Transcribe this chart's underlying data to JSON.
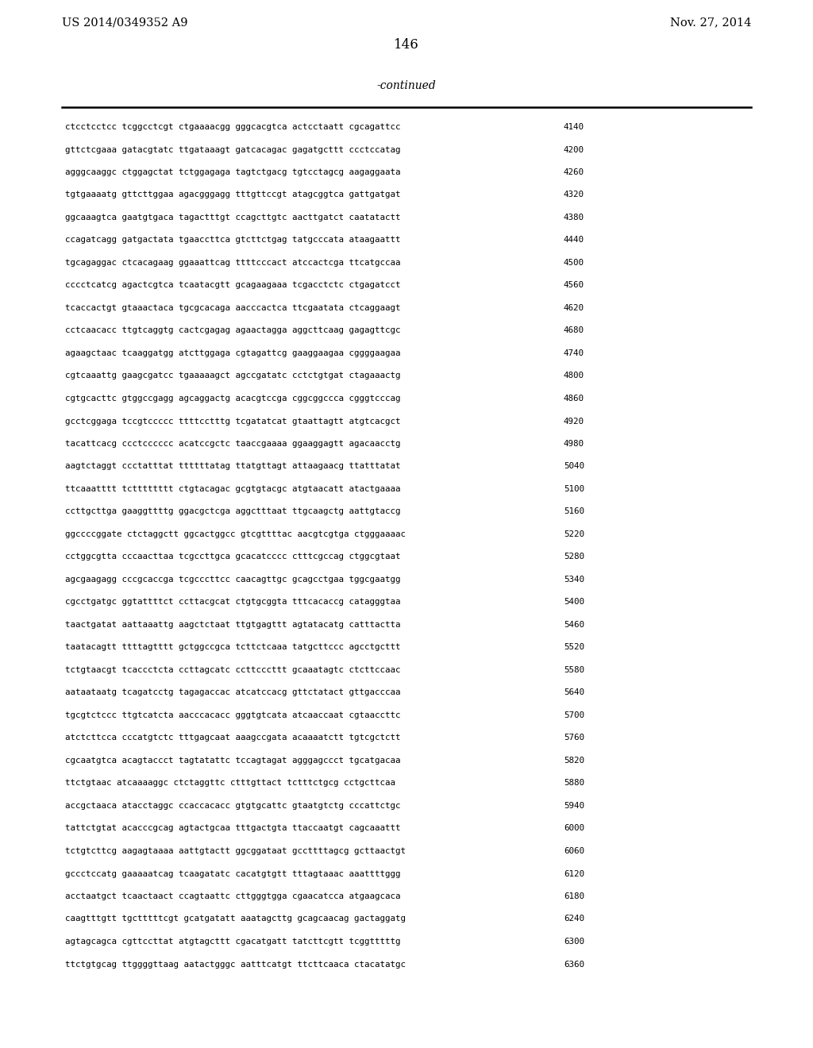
{
  "left_header": "US 2014/0349352 A9",
  "right_header": "Nov. 27, 2014",
  "page_number": "146",
  "continued_label": "-continued",
  "background_color": "#ffffff",
  "text_color": "#000000",
  "lines": [
    [
      "ctcctcctcc tcggcctcgt ctgaaaacgg gggcacgtca actcctaatt cgcagattcc",
      "4140"
    ],
    [
      "gttctcgaaa gatacgtatc ttgataaagt gatcacagac gagatgcttt ccctccatag",
      "4200"
    ],
    [
      "agggcaaggc ctggagctat tctggagaga tagtctgacg tgtcctagcg aagaggaata",
      "4260"
    ],
    [
      "tgtgaaaatg gttcttggaa agacgggagg tttgttccgt atagcggtca gattgatgat",
      "4320"
    ],
    [
      "ggcaaagtca gaatgtgaca tagactttgt ccagcttgtc aacttgatct caatatactt",
      "4380"
    ],
    [
      "ccagatcagg gatgactata tgaaccttca gtcttctgag tatgcccata ataagaattt",
      "4440"
    ],
    [
      "tgcagaggac ctcacagaag ggaaattcag ttttcccact atccactcga ttcatgccaa",
      "4500"
    ],
    [
      "cccctcatcg agactcgtca tcaatacgtt gcagaagaaa tcgacctctc ctgagatcct",
      "4560"
    ],
    [
      "tcaccactgt gtaaactaca tgcgcacaga aacccactca ttcgaatata ctcaggaagt",
      "4620"
    ],
    [
      "cctcaacacc ttgtcaggtg cactcgagag agaactagga aggcttcaag gagagttcgc",
      "4680"
    ],
    [
      "agaagctaac tcaaggatgg atcttggaga cgtagattcg gaaggaagaa cggggaagaa",
      "4740"
    ],
    [
      "cgtcaaattg gaagcgatcc tgaaaaagct agccgatatc cctctgtgat ctagaaactg",
      "4800"
    ],
    [
      "cgtgcacttc gtggccgagg agcaggactg acacgtccga cggcggccca cgggtcccag",
      "4860"
    ],
    [
      "gcctcggaga tccgtccccc ttttcctttg tcgatatcat gtaattagtt atgtcacgct",
      "4920"
    ],
    [
      "tacattcacg ccctcccccc acatccgctc taaccgaaaa ggaaggagtt agacaacctg",
      "4980"
    ],
    [
      "aagtctaggt ccctatttat ttttttatag ttatgttagt attaagaacg ttatttatat",
      "5040"
    ],
    [
      "ttcaaatttt tctttttttt ctgtacagac gcgtgtacgc atgtaacatt atactgaaaa",
      "5100"
    ],
    [
      "ccttgcttga gaaggttttg ggacgctcga aggctttaat ttgcaagctg aattgtaccg",
      "5160"
    ],
    [
      "ggccccggate ctctaggctt ggcactggcc gtcgttttac aacgtcgtga ctgggaaaac",
      "5220"
    ],
    [
      "cctggcgtta cccaacttaa tcgccttgca gcacatcccc ctttcgccag ctggcgtaat",
      "5280"
    ],
    [
      "agcgaagagg cccgcaccga tcgcccttcc caacagttgc gcagcctgaa tggcgaatgg",
      "5340"
    ],
    [
      "cgcctgatgc ggtattttct ccttacgcat ctgtgcggta tttcacaccg catagggtaa",
      "5400"
    ],
    [
      "taactgatat aattaaattg aagctctaat ttgtgagttt agtatacatg catttactta",
      "5460"
    ],
    [
      "taatacagtt ttttagtttt gctggccgca tcttctcaaa tatgcttccc agcctgcttt",
      "5520"
    ],
    [
      "tctgtaacgt tcaccctcta ccttagcatc ccttcccttt gcaaatagtc ctcttccaac",
      "5580"
    ],
    [
      "aataataatg tcagatcctg tagagaccac atcatccacg gttctatact gttgacccaa",
      "5640"
    ],
    [
      "tgcgtctccc ttgtcatcta aacccacacc gggtgtcata atcaaccaat cgtaaccttc",
      "5700"
    ],
    [
      "atctcttcca cccatgtctc tttgagcaat aaagccgata acaaaatctt tgtcgctctt",
      "5760"
    ],
    [
      "cgcaatgtca acagtaccct tagtatattc tccagtagat agggagccct tgcatgacaa",
      "5820"
    ],
    [
      "ttctgtaac atcaaaaggc ctctaggttc ctttgttact tctttctgcg cctgcttcaa",
      "5880"
    ],
    [
      "accgctaaca atacctaggc ccaccacacc gtgtgcattc gtaatgtctg cccattctgc",
      "5940"
    ],
    [
      "tattctgtat acacccgcag agtactgcaa tttgactgta ttaccaatgt cagcaaattt",
      "6000"
    ],
    [
      "tctgtcttcg aagagtaaaa aattgtactt ggcggataat gccttttagcg gcttaactgt",
      "6060"
    ],
    [
      "gccctccatg gaaaaatcag tcaagatatc cacatgtgtt tttagtaaac aaattttggg",
      "6120"
    ],
    [
      "acctaatgct tcaactaact ccagtaattc cttgggtgga cgaacatcca atgaagcaca",
      "6180"
    ],
    [
      "caagtttgtt tgctttttcgt gcatgatatt aaatagcttg gcagcaacag gactaggatg",
      "6240"
    ],
    [
      "agtagcagca cgttccttat atgtagcttt cgacatgatt tatcttcgtt tcggtttttg",
      "6300"
    ],
    [
      "ttctgtgcag ttggggttaag aatactgggc aatttcatgt ttcttcaaca ctacatatgc",
      "6360"
    ]
  ]
}
